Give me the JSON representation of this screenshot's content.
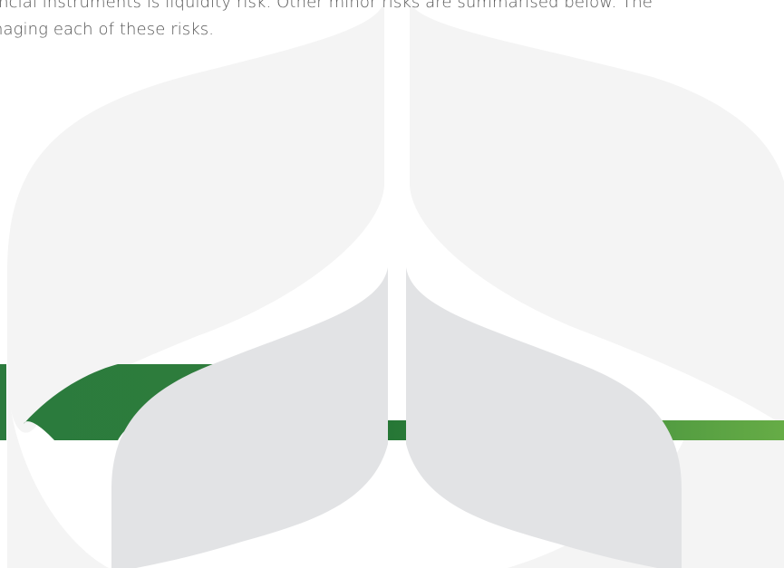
{
  "paragraph": {
    "line1": "ancial instruments is liquidity risk. Other minor risks are summarised below. The",
    "line2": "naging each of these risks."
  },
  "colors": {
    "text": "#555555",
    "light_leaf": "#f4f4f4",
    "mid_leaf": "#e2e3e5",
    "green_dark": "#2b7a3d",
    "green_light": "#63aa45"
  }
}
